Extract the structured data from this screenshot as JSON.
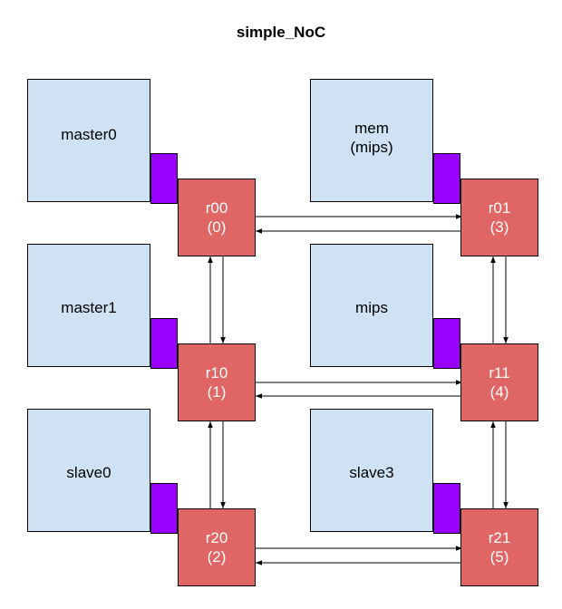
{
  "title": "simple_NoC",
  "nodes": {
    "master0": {
      "label": "master0"
    },
    "mem": {
      "line1": "mem",
      "line2": "(mips)"
    },
    "master1": {
      "label": "master1"
    },
    "mips": {
      "label": "mips"
    },
    "slave0": {
      "label": "slave0"
    },
    "slave3": {
      "label": "slave3"
    }
  },
  "routers": {
    "r00": {
      "name": "r00",
      "id": "(0)"
    },
    "r01": {
      "name": "r01",
      "id": "(3)"
    },
    "r10": {
      "name": "r10",
      "id": "(1)"
    },
    "r11": {
      "name": "r11",
      "id": "(4)"
    },
    "r20": {
      "name": "r20",
      "id": "(2)"
    },
    "r21": {
      "name": "r21",
      "id": "(5)"
    }
  },
  "colors": {
    "node_fill": "#cfe2f3",
    "port_fill": "#9900ff",
    "router_fill": "#e06666",
    "router_text": "#ffffff",
    "outline": "#000000"
  }
}
